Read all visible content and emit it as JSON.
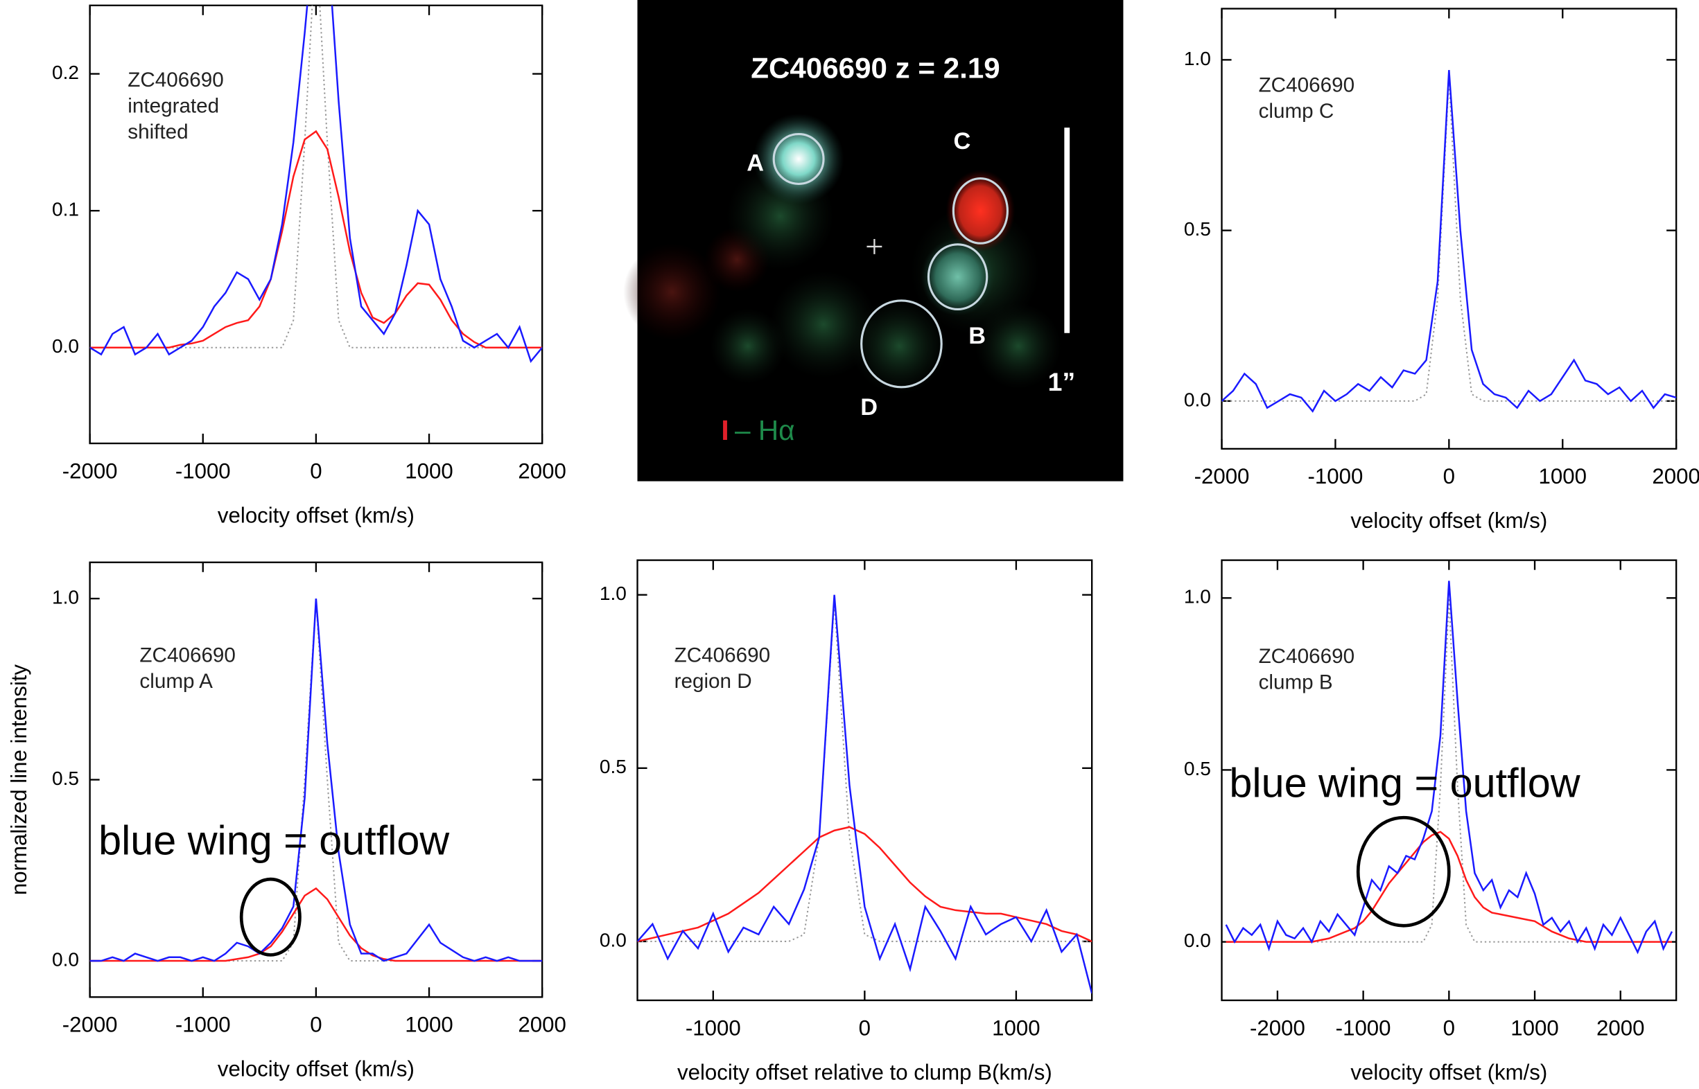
{
  "chart_data": [
    {
      "type": "line",
      "annotations": [
        "ZC406690",
        "integrated",
        "shifted"
      ],
      "xlabel": "velocity offset (km/s)",
      "xlim": [
        -2000,
        2000
      ],
      "xticks": [
        -2000,
        -1000,
        0,
        1000,
        2000
      ],
      "ylim": [
        -0.07,
        0.25
      ],
      "yticks": [
        {
          "value": 0,
          "label": "0.0"
        },
        0.1,
        0.2
      ],
      "x": [
        -2000,
        -1900,
        -1800,
        -1700,
        -1600,
        -1500,
        -1400,
        -1300,
        -1200,
        -1100,
        -1000,
        -900,
        -800,
        -700,
        -600,
        -500,
        -400,
        -300,
        -200,
        -100,
        0,
        100,
        200,
        300,
        400,
        500,
        600,
        700,
        800,
        900,
        1000,
        1100,
        1200,
        1300,
        1400,
        1500,
        1600,
        1700,
        1800,
        1900,
        2000
      ],
      "series": [
        {
          "color": "#1a1aff",
          "linestyle": "solid",
          "values": [
            0,
            -0.005,
            0.01,
            0.015,
            -0.005,
            0,
            0.01,
            -0.005,
            0,
            0.005,
            0.015,
            0.03,
            0.04,
            0.055,
            0.05,
            0.035,
            0.05,
            0.09,
            0.15,
            0.23,
            0.32,
            0.3,
            0.18,
            0.08,
            0.03,
            0.02,
            0.01,
            0.025,
            0.06,
            0.1,
            0.09,
            0.05,
            0.03,
            0.005,
            0,
            0.005,
            0.01,
            0,
            0.015,
            -0.01,
            0
          ]
        },
        {
          "color": "#ff1a1a",
          "linestyle": "solid",
          "values": [
            0,
            0,
            0,
            0,
            0,
            0,
            0,
            0,
            0.002,
            0.003,
            0.005,
            0.01,
            0.015,
            0.018,
            0.02,
            0.03,
            0.05,
            0.085,
            0.125,
            0.152,
            0.158,
            0.145,
            0.11,
            0.07,
            0.04,
            0.022,
            0.018,
            0.025,
            0.038,
            0.047,
            0.046,
            0.035,
            0.02,
            0.01,
            0.004,
            0,
            0,
            0,
            0,
            0,
            0
          ]
        },
        {
          "color": "#999999",
          "linestyle": "dotted",
          "values": [
            0,
            0,
            0,
            0,
            0,
            0,
            0,
            0,
            0,
            0,
            0,
            0,
            0,
            0,
            0,
            0,
            0,
            0,
            0.02,
            0.15,
            0.3,
            0.15,
            0.02,
            0,
            0,
            0,
            0,
            0,
            0,
            0,
            0,
            0,
            0,
            0,
            0,
            0,
            0,
            0,
            0,
            0,
            0
          ]
        }
      ]
    },
    {
      "type": "image",
      "title": "ZC406690 z = 2.19",
      "labels": [
        "A",
        "B",
        "C",
        "D"
      ],
      "scale_label": "1”",
      "legend": [
        "I",
        "– Hα"
      ]
    },
    {
      "type": "line",
      "annotations": [
        "ZC406690",
        "clump C"
      ],
      "xlabel": "velocity offset (km/s)",
      "xlim": [
        -2000,
        2000
      ],
      "xticks": [
        -2000,
        -1000,
        0,
        1000,
        2000
      ],
      "ylim": [
        -0.14,
        1.15
      ],
      "yticks": [
        {
          "value": 0,
          "label": "0.0"
        },
        0.5,
        {
          "value": 1,
          "label": "1.0"
        }
      ],
      "x": [
        -2000,
        -1900,
        -1800,
        -1700,
        -1600,
        -1500,
        -1400,
        -1300,
        -1200,
        -1100,
        -1000,
        -900,
        -800,
        -700,
        -600,
        -500,
        -400,
        -300,
        -200,
        -100,
        0,
        100,
        200,
        300,
        400,
        500,
        600,
        700,
        800,
        900,
        1000,
        1100,
        1200,
        1300,
        1400,
        1500,
        1600,
        1700,
        1800,
        1900,
        2000
      ],
      "series": [
        {
          "color": "#1a1aff",
          "linestyle": "solid",
          "values": [
            0,
            0.03,
            0.08,
            0.05,
            -0.02,
            0,
            0.02,
            0.01,
            -0.03,
            0.03,
            0,
            0.02,
            0.05,
            0.03,
            0.07,
            0.04,
            0.09,
            0.08,
            0.12,
            0.35,
            0.97,
            0.5,
            0.15,
            0.05,
            0.02,
            0.01,
            -0.02,
            0.03,
            0,
            0.02,
            0.07,
            0.12,
            0.06,
            0.05,
            0.02,
            0.04,
            0,
            0.03,
            -0.02,
            0.02,
            0.01
          ]
        },
        {
          "color": "#999999",
          "linestyle": "dotted",
          "values": [
            0,
            0,
            0,
            0,
            0,
            0,
            0,
            0,
            0,
            0,
            0,
            0,
            0,
            0,
            0,
            0,
            0,
            0,
            0.02,
            0.3,
            0.95,
            0.3,
            0.02,
            0,
            0,
            0,
            0,
            0,
            0,
            0,
            0,
            0,
            0,
            0,
            0,
            0,
            0,
            0,
            0,
            0,
            0
          ]
        }
      ]
    },
    {
      "type": "line",
      "annotations": [
        "ZC406690",
        "clump A"
      ],
      "callout": "blue wing = outflow",
      "xlabel": "velocity offset (km/s)",
      "ylabel": "normalized line intensity",
      "xlim": [
        -2000,
        2000
      ],
      "xticks": [
        -2000,
        -1000,
        0,
        1000,
        2000
      ],
      "ylim": [
        -0.1,
        1.1
      ],
      "yticks": [
        {
          "value": 0,
          "label": "0.0"
        },
        0.5,
        {
          "value": 1,
          "label": "1.0"
        }
      ],
      "x": [
        -2000,
        -1900,
        -1800,
        -1700,
        -1600,
        -1500,
        -1400,
        -1300,
        -1200,
        -1100,
        -1000,
        -900,
        -800,
        -700,
        -600,
        -500,
        -400,
        -300,
        -200,
        -100,
        0,
        100,
        200,
        300,
        400,
        500,
        600,
        700,
        800,
        900,
        1000,
        1100,
        1200,
        1300,
        1400,
        1500,
        1600,
        1700,
        1800,
        1900,
        2000
      ],
      "series": [
        {
          "color": "#1a1aff",
          "linestyle": "solid",
          "values": [
            0,
            0,
            0.01,
            0,
            0.02,
            0.01,
            0,
            0.01,
            0.01,
            0,
            0.01,
            0,
            0.02,
            0.05,
            0.04,
            0.02,
            0.05,
            0.09,
            0.15,
            0.45,
            1.0,
            0.6,
            0.3,
            0.1,
            0.02,
            0.02,
            0,
            0.01,
            0.02,
            0.06,
            0.1,
            0.05,
            0.03,
            0.01,
            0,
            0.01,
            0,
            0.01,
            0,
            0,
            0
          ]
        },
        {
          "color": "#ff1a1a",
          "linestyle": "solid",
          "values": [
            0,
            0,
            0,
            0,
            0,
            0,
            0,
            0,
            0,
            0,
            0,
            0,
            0,
            0.005,
            0.01,
            0.02,
            0.04,
            0.08,
            0.13,
            0.18,
            0.2,
            0.17,
            0.12,
            0.07,
            0.035,
            0.015,
            0.005,
            0,
            0,
            0,
            0,
            0,
            0,
            0,
            0,
            0,
            0,
            0,
            0,
            0,
            0
          ]
        },
        {
          "color": "#999999",
          "linestyle": "dotted",
          "values": [
            0,
            0,
            0,
            0,
            0,
            0,
            0,
            0,
            0,
            0,
            0,
            0,
            0,
            0,
            0,
            0,
            0,
            0,
            0.05,
            0.5,
            1.0,
            0.5,
            0.05,
            0,
            0,
            0,
            0,
            0,
            0,
            0,
            0,
            0,
            0,
            0,
            0,
            0,
            0,
            0,
            0,
            0,
            0
          ]
        }
      ]
    },
    {
      "type": "line",
      "annotations": [
        "ZC406690",
        "region D"
      ],
      "xlabel": "velocity offset relative to clump B(km/s)",
      "xlim": [
        -1500,
        1500
      ],
      "xticks": [
        -1000,
        0,
        1000
      ],
      "ylim": [
        -0.17,
        1.1
      ],
      "yticks": [
        {
          "value": 0,
          "label": "0.0"
        },
        0.5,
        {
          "value": 1,
          "label": "1.0"
        }
      ],
      "x": [
        -1500,
        -1400,
        -1300,
        -1200,
        -1100,
        -1000,
        -900,
        -800,
        -700,
        -600,
        -500,
        -400,
        -300,
        -200,
        -100,
        0,
        100,
        200,
        300,
        400,
        500,
        600,
        700,
        800,
        900,
        1000,
        1100,
        1200,
        1300,
        1400,
        1500
      ],
      "series": [
        {
          "color": "#1a1aff",
          "linestyle": "solid",
          "values": [
            0,
            0.05,
            -0.05,
            0.03,
            -0.02,
            0.08,
            -0.03,
            0.04,
            0.02,
            0.1,
            0.05,
            0.15,
            0.3,
            1.0,
            0.45,
            0.1,
            -0.05,
            0.05,
            -0.08,
            0.1,
            0.03,
            -0.05,
            0.1,
            0.02,
            0.05,
            0.07,
            0,
            0.09,
            -0.03,
            0.02,
            -0.15
          ]
        },
        {
          "color": "#ff1a1a",
          "linestyle": "solid",
          "values": [
            0,
            0.01,
            0.02,
            0.03,
            0.04,
            0.06,
            0.08,
            0.11,
            0.14,
            0.18,
            0.22,
            0.26,
            0.3,
            0.32,
            0.33,
            0.31,
            0.27,
            0.22,
            0.17,
            0.13,
            0.1,
            0.09,
            0.085,
            0.08,
            0.08,
            0.07,
            0.06,
            0.05,
            0.03,
            0.02,
            0
          ]
        },
        {
          "color": "#999999",
          "linestyle": "dotted",
          "values": [
            0,
            0,
            0,
            0,
            0,
            0,
            0,
            0,
            0,
            0,
            0,
            0.02,
            0.3,
            0.98,
            0.3,
            0.02,
            0,
            0,
            0,
            0,
            0,
            0,
            0,
            0,
            0,
            0,
            0,
            0,
            0,
            0,
            0
          ]
        }
      ]
    },
    {
      "type": "line",
      "annotations": [
        "ZC406690",
        "clump B"
      ],
      "callout": "blue wing = outflow",
      "xlabel": "velocity offset (km/s)",
      "xlim": [
        -2650,
        2650
      ],
      "xticks": [
        -2000,
        -1000,
        0,
        1000,
        2000
      ],
      "ylim": [
        -0.17,
        1.11
      ],
      "yticks": [
        {
          "value": 0,
          "label": "0.0"
        },
        0.5,
        {
          "value": 1,
          "label": "1.0"
        }
      ],
      "x": [
        -2600,
        -2500,
        -2400,
        -2300,
        -2200,
        -2100,
        -2000,
        -1900,
        -1800,
        -1700,
        -1600,
        -1500,
        -1400,
        -1300,
        -1200,
        -1100,
        -1000,
        -900,
        -800,
        -700,
        -600,
        -500,
        -400,
        -300,
        -200,
        -100,
        0,
        100,
        200,
        300,
        400,
        500,
        600,
        700,
        800,
        900,
        1000,
        1100,
        1200,
        1300,
        1400,
        1500,
        1600,
        1700,
        1800,
        1900,
        2000,
        2100,
        2200,
        2300,
        2400,
        2500,
        2600
      ],
      "series": [
        {
          "color": "#1a1aff",
          "linestyle": "solid",
          "values": [
            0.05,
            0,
            0.04,
            0.02,
            0.05,
            -0.02,
            0.06,
            0.02,
            0.01,
            0.04,
            0,
            0.06,
            0.03,
            0.08,
            0.05,
            0.02,
            0.1,
            0.18,
            0.15,
            0.22,
            0.2,
            0.25,
            0.24,
            0.3,
            0.38,
            0.6,
            1.05,
            0.7,
            0.38,
            0.2,
            0.15,
            0.18,
            0.1,
            0.15,
            0.13,
            0.2,
            0.14,
            0.05,
            0.07,
            0.03,
            0.06,
            0,
            0.04,
            -0.02,
            0.05,
            0.02,
            0.07,
            0.02,
            -0.03,
            0.03,
            0.06,
            -0.02,
            0.03
          ]
        },
        {
          "color": "#ff1a1a",
          "linestyle": "solid",
          "values": [
            0,
            0,
            0,
            0,
            0,
            0,
            0,
            0,
            0,
            0,
            0,
            0.005,
            0.01,
            0.02,
            0.03,
            0.04,
            0.06,
            0.09,
            0.13,
            0.17,
            0.2,
            0.23,
            0.26,
            0.29,
            0.31,
            0.32,
            0.3,
            0.25,
            0.18,
            0.13,
            0.1,
            0.085,
            0.08,
            0.075,
            0.07,
            0.065,
            0.06,
            0.045,
            0.03,
            0.02,
            0.01,
            0.005,
            0,
            0,
            0,
            0,
            0,
            0,
            0,
            0,
            0,
            0,
            0
          ]
        },
        {
          "color": "#999999",
          "linestyle": "dotted",
          "values": [
            0,
            0,
            0,
            0,
            0,
            0,
            0,
            0,
            0,
            0,
            0,
            0,
            0,
            0,
            0,
            0,
            0,
            0,
            0,
            0,
            0,
            0,
            0,
            0,
            0.05,
            0.45,
            1.0,
            0.45,
            0.05,
            0,
            0,
            0,
            0,
            0,
            0,
            0,
            0,
            0,
            0,
            0,
            0,
            0,
            0,
            0,
            0,
            0,
            0,
            0,
            0,
            0,
            0,
            0,
            0
          ]
        }
      ]
    }
  ]
}
